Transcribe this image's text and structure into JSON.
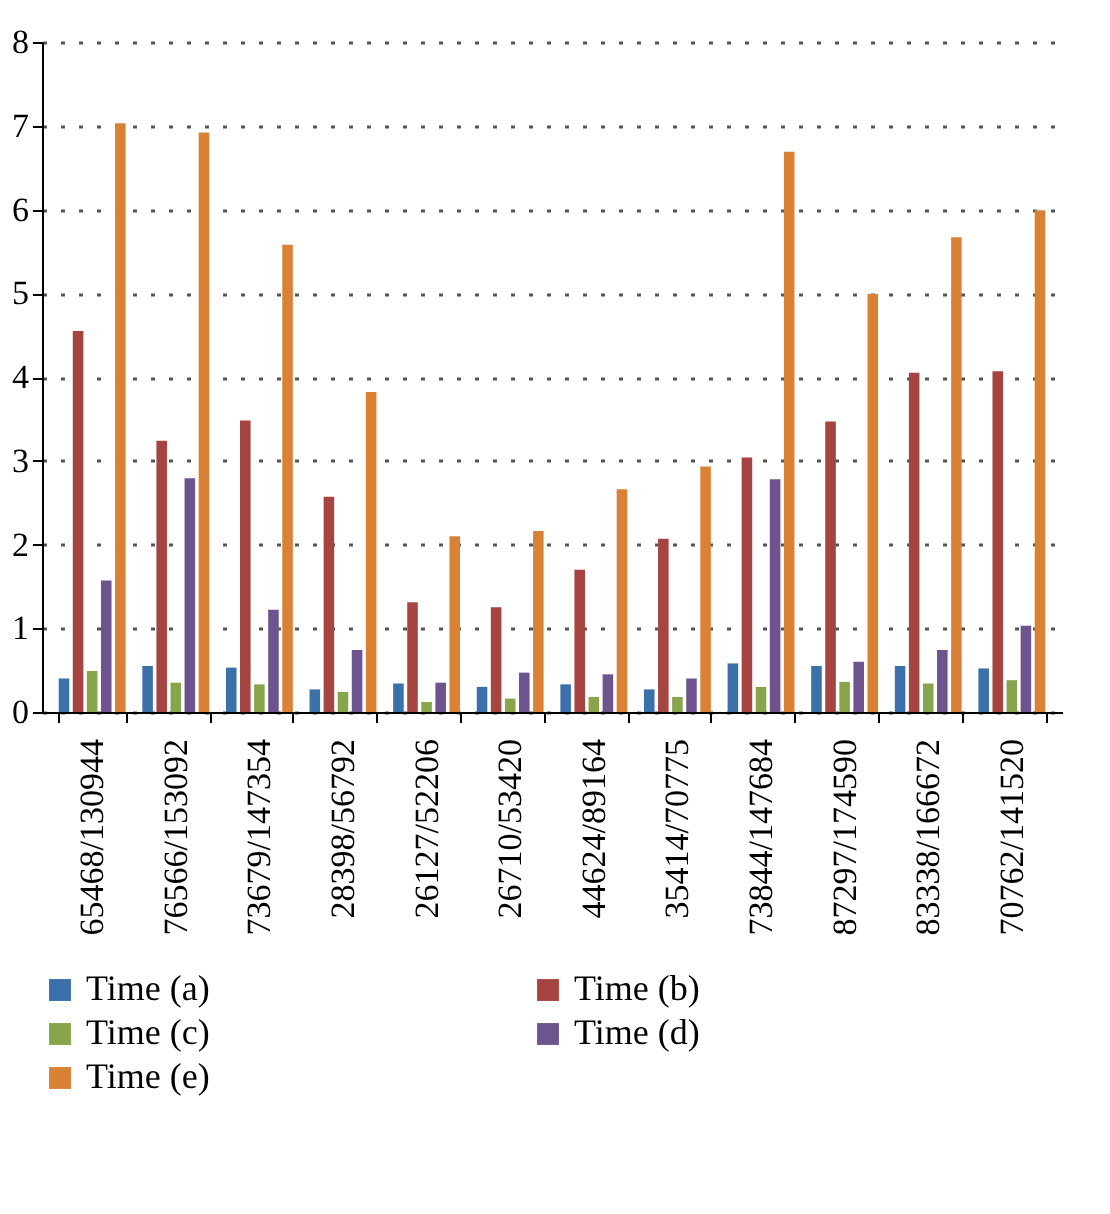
{
  "chart_data": {
    "type": "bar",
    "categories": [
      "65468/130944",
      "76566/153092",
      "73679/147354",
      "28398/56792",
      "26127/52206",
      "26710/53420",
      "44624/89164",
      "35414/70775",
      "73844/147684",
      "87297/174590",
      "83338/166672",
      "70762/141520"
    ],
    "series": [
      {
        "name": "Time (a)",
        "color": "#3b70aa",
        "values": [
          0.4,
          0.55,
          0.53,
          0.27,
          0.34,
          0.3,
          0.33,
          0.27,
          0.58,
          0.55,
          0.55,
          0.52
        ]
      },
      {
        "name": "Time (b)",
        "color": "#a64442",
        "values": [
          4.55,
          3.24,
          3.48,
          2.57,
          1.31,
          1.25,
          1.7,
          2.07,
          3.04,
          3.47,
          4.05,
          4.07
        ]
      },
      {
        "name": "Time (c)",
        "color": "#87a54b",
        "values": [
          0.49,
          0.35,
          0.33,
          0.24,
          0.12,
          0.16,
          0.18,
          0.18,
          0.3,
          0.36,
          0.34,
          0.38
        ]
      },
      {
        "name": "Time (d)",
        "color": "#6e548e",
        "values": [
          1.57,
          2.79,
          1.22,
          0.74,
          0.35,
          0.47,
          0.45,
          0.4,
          2.78,
          0.6,
          0.74,
          1.03
        ]
      },
      {
        "name": "Time (e)",
        "color": "#d98236",
        "values": [
          7.03,
          6.92,
          5.58,
          3.82,
          2.1,
          2.16,
          2.66,
          2.93,
          6.69,
          4.99,
          5.67,
          5.99
        ]
      }
    ],
    "ylim": [
      0,
      8
    ],
    "yticks": [
      0,
      1,
      2,
      3,
      4,
      5,
      6,
      7,
      8
    ],
    "grid": "y",
    "legend": "bottom"
  }
}
